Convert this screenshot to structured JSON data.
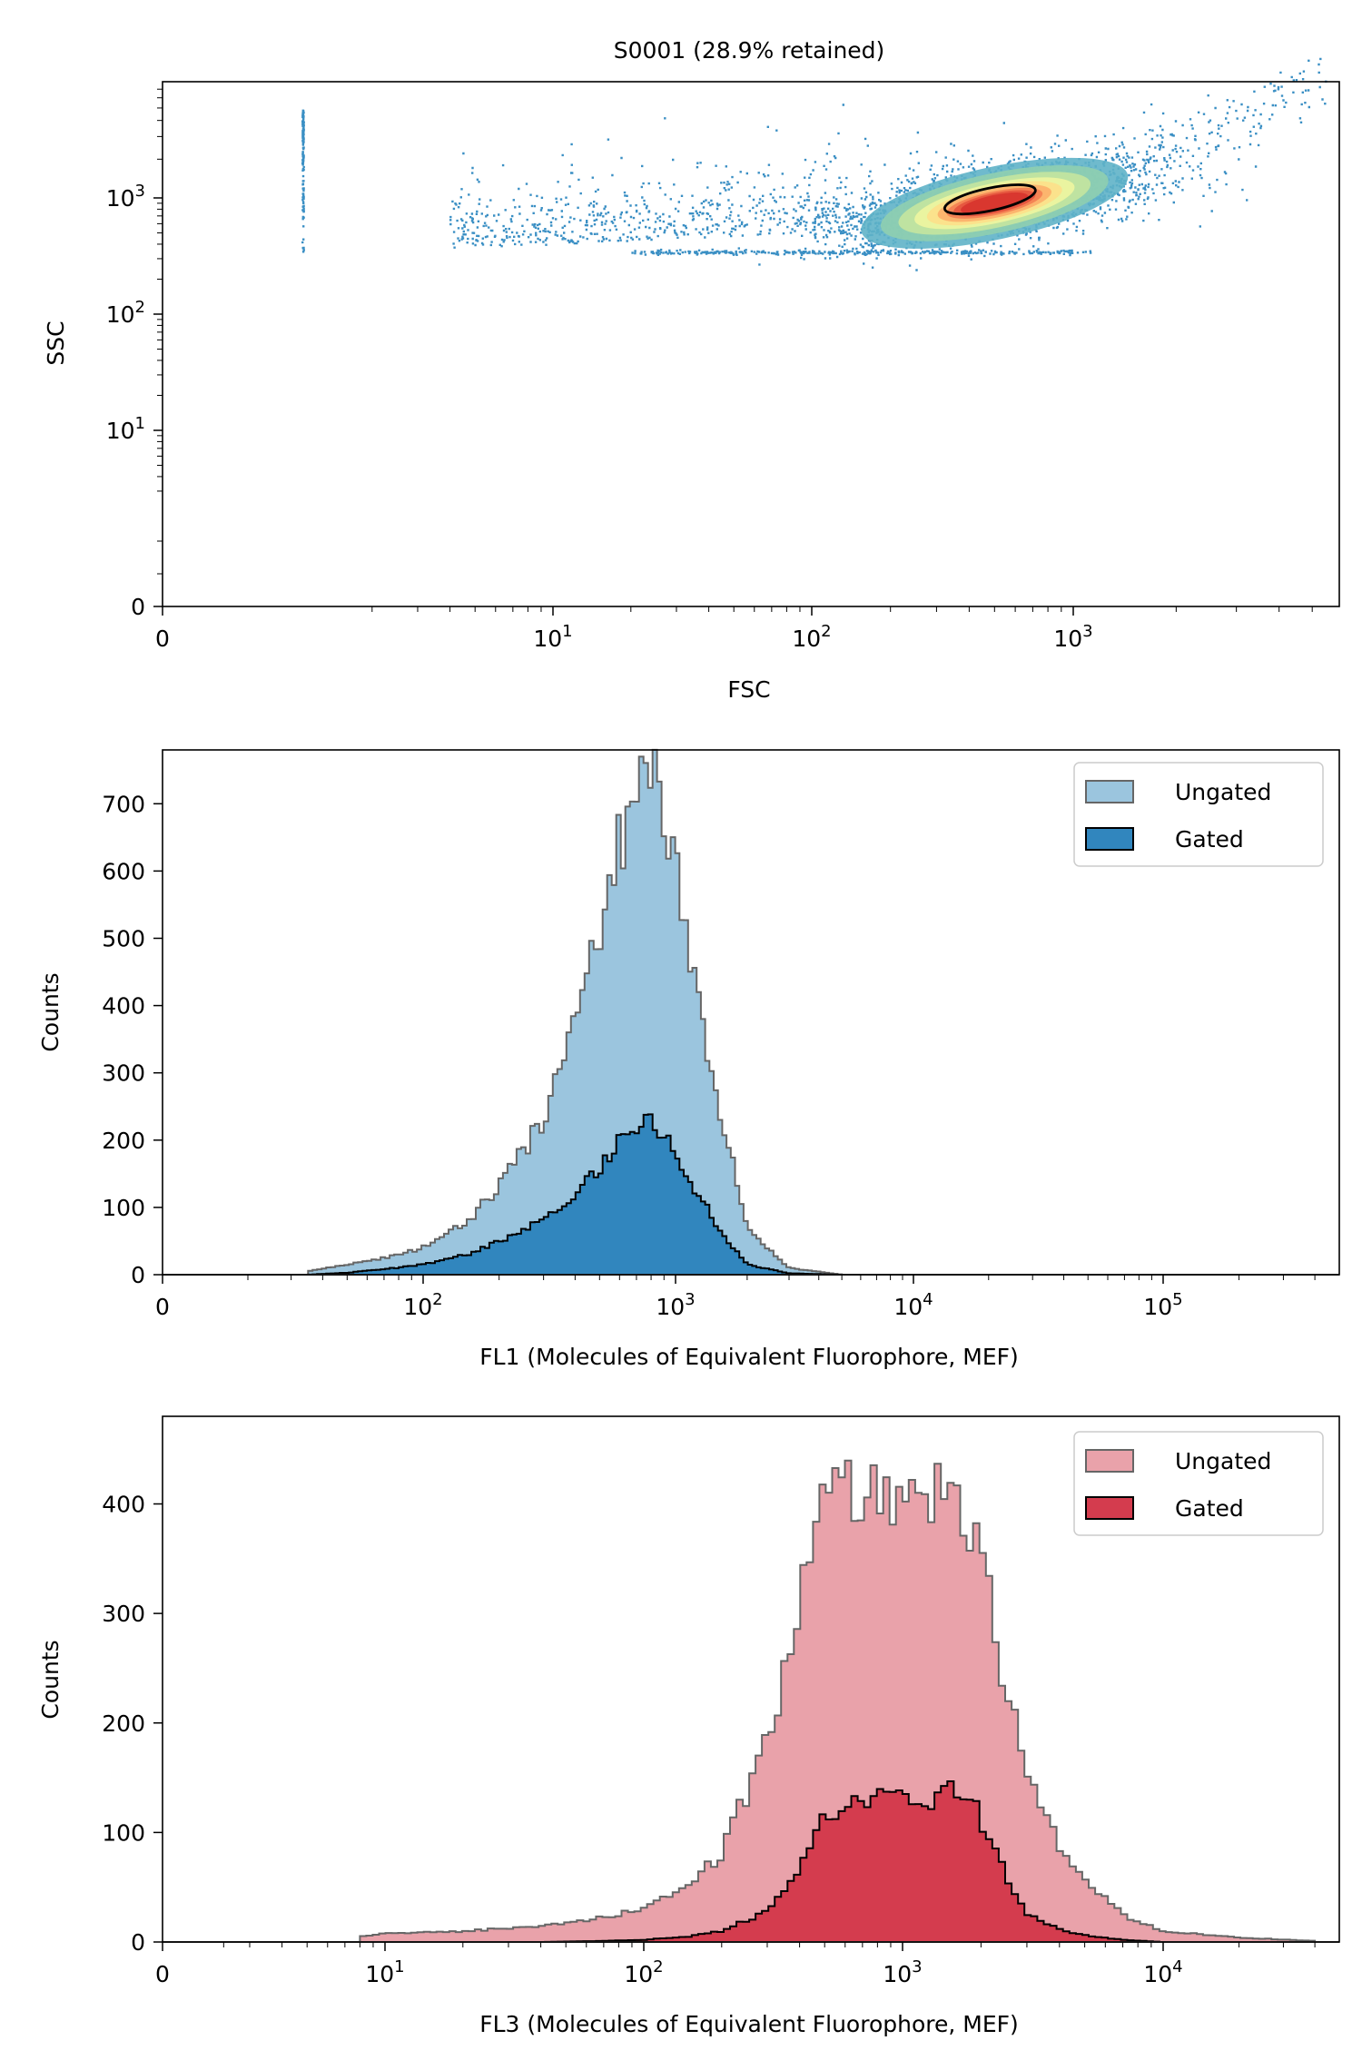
{
  "colors": {
    "scatter_point": "#3a8fc4",
    "density_low": "#3a8fc4",
    "density_mid": "#e9f39a",
    "density_high": "#d7342d",
    "fl1_ungated_fill": "#9bc5de",
    "fl1_gated_fill": "#3186be",
    "fl3_ungated_fill": "#e9a2aa",
    "fl3_gated_fill": "#d43c4e",
    "ungated_edge": "#666666",
    "gated_edge": "#000000"
  },
  "chart_data": [
    {
      "type": "scatter",
      "title": "S0001 (28.9% retained)",
      "xlabel": "FSC",
      "ylabel": "SSC",
      "xscale": "logicle",
      "yscale": "logicle",
      "xlim": [
        0,
        6000
      ],
      "ylim": [
        0,
        8000
      ],
      "x_ticks": [
        {
          "value": 0,
          "base": "0",
          "exp": ""
        },
        {
          "value": 10,
          "base": "10",
          "exp": "1"
        },
        {
          "value": 100,
          "base": "10",
          "exp": "2"
        },
        {
          "value": 1000,
          "base": "10",
          "exp": "3"
        }
      ],
      "y_ticks": [
        {
          "value": 0,
          "base": "0",
          "exp": ""
        },
        {
          "value": 10,
          "base": "10",
          "exp": "1"
        },
        {
          "value": 100,
          "base": "10",
          "exp": "2"
        },
        {
          "value": 1000,
          "base": "10",
          "exp": "3"
        }
      ],
      "density_core": {
        "fsc": 500,
        "ssc": 900
      },
      "gate": {
        "fsc_range": [
          330,
          700
        ],
        "ssc_range": [
          750,
          1230
        ]
      },
      "grid": false
    },
    {
      "type": "histogram",
      "xlabel": "FL1 (Molecules of Equivalent Fluorophore, MEF)",
      "ylabel": "Counts",
      "xscale": "logicle",
      "xlim": [
        0,
        500000
      ],
      "ylim": [
        0,
        780
      ],
      "x_ticks": [
        {
          "value": 0,
          "base": "0",
          "exp": ""
        },
        {
          "value": 100,
          "base": "10",
          "exp": "2"
        },
        {
          "value": 1000,
          "base": "10",
          "exp": "3"
        },
        {
          "value": 10000,
          "base": "10",
          "exp": "4"
        },
        {
          "value": 100000,
          "base": "10",
          "exp": "5"
        }
      ],
      "y_ticks": [
        0,
        100,
        200,
        300,
        400,
        500,
        600,
        700
      ],
      "legend": {
        "position": "top-right",
        "entries": [
          "Ungated",
          "Gated"
        ]
      },
      "series": [
        {
          "name": "Ungated",
          "x": [
            35,
            50,
            70,
            100,
            150,
            200,
            300,
            400,
            500,
            600,
            700,
            800,
            900,
            1000,
            1200,
            1500,
            2000,
            3000,
            5000
          ],
          "y": [
            5,
            15,
            25,
            40,
            80,
            130,
            230,
            380,
            520,
            640,
            710,
            745,
            700,
            600,
            430,
            260,
            70,
            10,
            0
          ]
        },
        {
          "name": "Gated",
          "x": [
            35,
            50,
            70,
            100,
            150,
            200,
            300,
            400,
            500,
            600,
            700,
            800,
            900,
            1000,
            1200,
            1500,
            2000,
            3000,
            5000
          ],
          "y": [
            0,
            3,
            8,
            15,
            30,
            50,
            80,
            120,
            160,
            195,
            215,
            225,
            210,
            180,
            130,
            70,
            15,
            2,
            0
          ]
        }
      ],
      "grid": false
    },
    {
      "type": "histogram",
      "xlabel": "FL3 (Molecules of Equivalent Fluorophore, MEF)",
      "ylabel": "Counts",
      "xscale": "logicle",
      "xlim": [
        0,
        50000
      ],
      "ylim": [
        0,
        480
      ],
      "x_ticks": [
        {
          "value": 0,
          "base": "0",
          "exp": ""
        },
        {
          "value": 10,
          "base": "10",
          "exp": "1"
        },
        {
          "value": 100,
          "base": "10",
          "exp": "2"
        },
        {
          "value": 1000,
          "base": "10",
          "exp": "3"
        },
        {
          "value": 10000,
          "base": "10",
          "exp": "4"
        }
      ],
      "y_ticks": [
        0,
        100,
        200,
        300,
        400
      ],
      "legend": {
        "position": "top-right",
        "entries": [
          "Ungated",
          "Gated"
        ]
      },
      "series": [
        {
          "name": "Ungated",
          "x": [
            8,
            10,
            20,
            40,
            70,
            100,
            150,
            200,
            300,
            400,
            500,
            600,
            800,
            1000,
            1200,
            1500,
            1800,
            2200,
            2600,
            3000,
            4000,
            5000,
            7000,
            10000,
            20000,
            40000
          ],
          "y": [
            5,
            8,
            10,
            14,
            22,
            32,
            52,
            80,
            180,
            320,
            400,
            420,
            410,
            390,
            400,
            420,
            380,
            300,
            220,
            150,
            90,
            55,
            25,
            10,
            4,
            1
          ]
        },
        {
          "name": "Gated",
          "x": [
            8,
            10,
            20,
            40,
            70,
            100,
            150,
            200,
            300,
            400,
            500,
            600,
            800,
            1000,
            1200,
            1500,
            1800,
            2200,
            2600,
            3000,
            4000,
            5000,
            7000,
            10000,
            20000,
            40000
          ],
          "y": [
            0,
            0,
            0,
            0,
            1,
            2,
            5,
            10,
            28,
            70,
            115,
            130,
            135,
            128,
            125,
            140,
            130,
            95,
            50,
            25,
            12,
            6,
            2,
            0,
            0,
            0
          ]
        }
      ],
      "grid": false
    }
  ]
}
